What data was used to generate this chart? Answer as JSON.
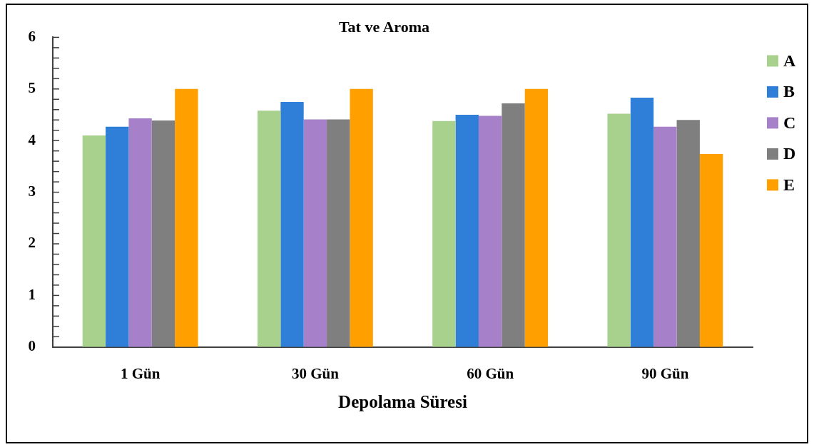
{
  "chart_data": {
    "type": "bar",
    "title": "Tat ve Aroma",
    "xlabel": "Depolama Süresi",
    "categories": [
      "1 Gün",
      "30 Gün",
      "60 Gün",
      "90 Gün"
    ],
    "series": [
      {
        "name": "A",
        "color": "#a9d18e",
        "values": [
          4.1,
          4.58,
          4.38,
          4.52
        ]
      },
      {
        "name": "B",
        "color": "#2f7ed8",
        "values": [
          4.27,
          4.75,
          4.5,
          4.83
        ]
      },
      {
        "name": "C",
        "color": "#a680c8",
        "values": [
          4.43,
          4.41,
          4.48,
          4.27
        ]
      },
      {
        "name": "D",
        "color": "#7f7f7f",
        "values": [
          4.39,
          4.41,
          4.72,
          4.4
        ]
      },
      {
        "name": "E",
        "color": "#ffa000",
        "values": [
          5,
          5,
          5,
          3.74
        ]
      }
    ],
    "ylim": [
      0,
      6
    ],
    "yticks": [
      0,
      {
        "value": 0.2,
        "label": null
      },
      {
        "value": 0.4,
        "label": null
      },
      {
        "value": 0.6,
        "label": null
      },
      {
        "value": 0.8,
        "label": null
      },
      1,
      {
        "value": 1.2,
        "label": null
      },
      {
        "value": 1.4,
        "label": null
      },
      {
        "value": 1.6,
        "label": null
      },
      {
        "value": 1.8,
        "label": null
      },
      2,
      {
        "value": 2.2,
        "label": null
      },
      {
        "value": 2.4,
        "label": null
      },
      {
        "value": 2.6,
        "label": null
      },
      {
        "value": 2.8,
        "label": null
      },
      3,
      {
        "value": 3.2,
        "label": null
      },
      {
        "value": 3.4,
        "label": null
      },
      {
        "value": 3.6,
        "label": null
      },
      {
        "value": 3.8,
        "label": null
      },
      4,
      {
        "value": 4.2,
        "label": null
      },
      {
        "value": 4.4,
        "label": null
      },
      {
        "value": 4.6,
        "label": null
      },
      {
        "value": 4.8,
        "label": null
      },
      5,
      {
        "value": 5.2,
        "label": null
      },
      {
        "value": 5.4,
        "label": null
      },
      {
        "value": 5.6,
        "label": null
      },
      {
        "value": 5.8,
        "label": null
      },
      6
    ],
    "grid": false,
    "legend": "top right"
  }
}
